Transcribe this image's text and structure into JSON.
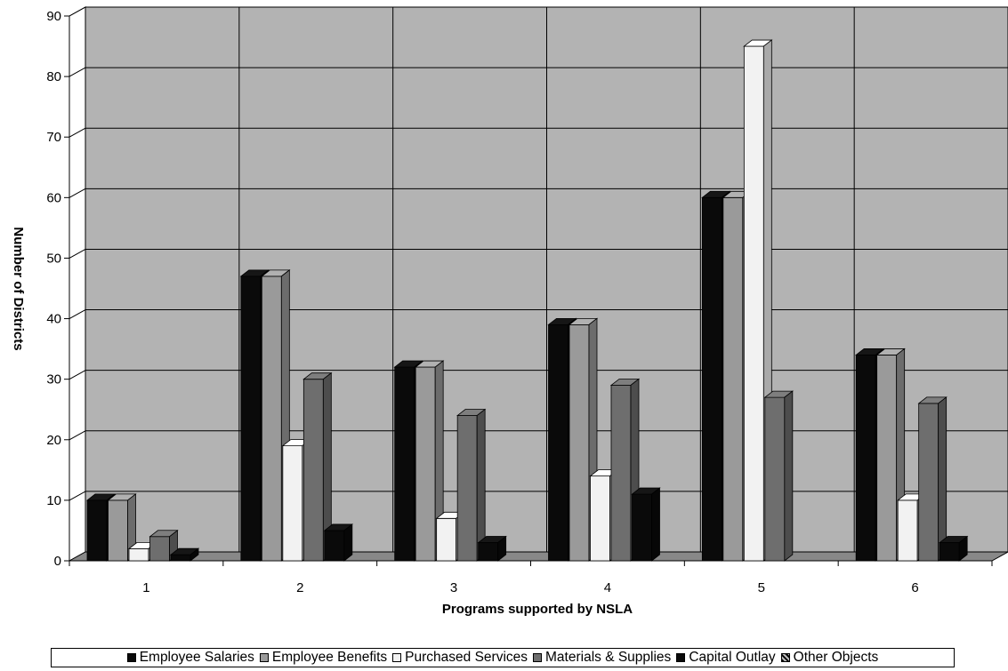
{
  "chart_data": {
    "type": "bar",
    "three_d": true,
    "xlabel": "Programs supported by NSLA",
    "ylabel": "Number of Districts",
    "ylim": [
      0,
      90
    ],
    "yticks": [
      0,
      10,
      20,
      30,
      40,
      50,
      60,
      70,
      80,
      90
    ],
    "grid": true,
    "legend_position": "bottom",
    "categories": [
      "1",
      "2",
      "3",
      "4",
      "5",
      "6"
    ],
    "series": [
      {
        "name": "Employee Salaries",
        "color": "#0a0a0a",
        "values": [
          10,
          47,
          32,
          39,
          60,
          34
        ]
      },
      {
        "name": "Employee Benefits",
        "color": "#9a9a9a",
        "values": [
          10,
          47,
          32,
          39,
          60,
          34
        ]
      },
      {
        "name": "Purchased Services",
        "color": "#f2f2f2",
        "values": [
          2,
          19,
          7,
          14,
          85,
          10
        ]
      },
      {
        "name": "Materials & Supplies",
        "color": "#6e6e6e",
        "values": [
          4,
          30,
          24,
          29,
          27,
          26
        ]
      },
      {
        "name": "Capital Outlay",
        "color": "#0a0a0a",
        "values": [
          1,
          5,
          3,
          11,
          0,
          3
        ]
      },
      {
        "name": "Other Objects",
        "color": "#777777",
        "values": [
          0,
          0,
          0,
          0,
          0,
          0
        ]
      }
    ]
  }
}
